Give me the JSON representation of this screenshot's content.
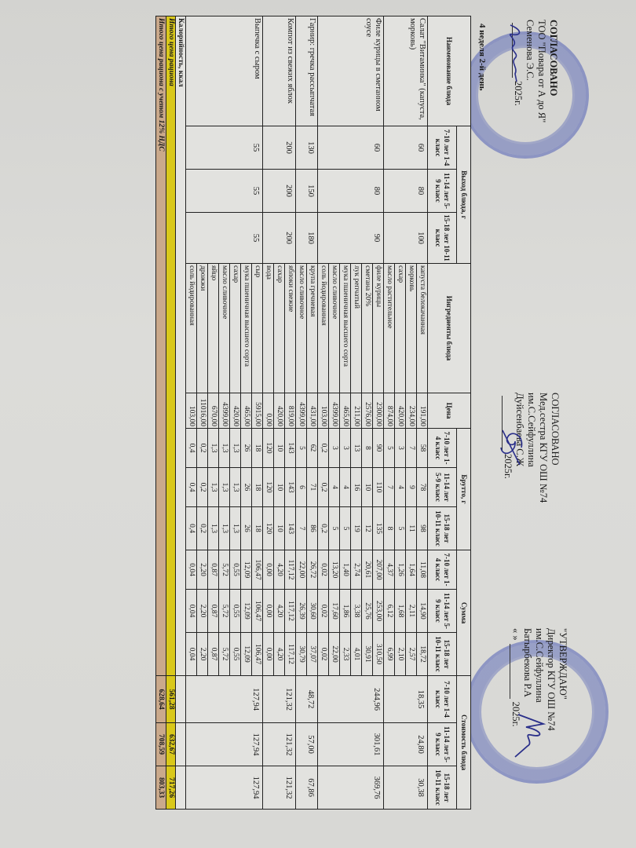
{
  "approvals": {
    "left": {
      "title": "СОГЛАСОВАНО",
      "org": "ТОО \"Повара от А до Я\"",
      "person": "Семенова Э.С.",
      "year": "2025г."
    },
    "middle": {
      "title": "СОГЛАСОВАНО",
      "position": "Мед.сестра КГУ ОШ №74",
      "school": "им.С.Сейфуллина",
      "person": "Дуйсенбаева С.Ж",
      "year": "2025г."
    },
    "right": {
      "title": "\"УТВЕРЖДАЮ\"",
      "position": "Директор КГУ ОШ №74",
      "school": "им.С.Сейфуллина",
      "person": "Батырбекова Р.А",
      "date_prefix": "«   »",
      "year": "2025г."
    }
  },
  "day_label": "4 неделя 2-й день",
  "headers": {
    "dish": "Наименование блюда",
    "yield": "Выход блюда, г",
    "ingredients": "Ингредиенты блюда",
    "price": "Цена",
    "brutto": "Брутто, г",
    "sum": "Сумма",
    "cost": "Стоимость блюда",
    "groups": [
      "7-10 лет 1-4 класс",
      "11-14 лет 5-9 класс",
      "15-18 лет 10-11 класс"
    ]
  },
  "dishes": [
    {
      "name": "Салат \"Витаминка\" (капуста, морковь)",
      "yield": [
        "60",
        "80",
        "100"
      ],
      "cost": [
        "18,35",
        "24,80",
        "30,38"
      ],
      "ingredients": [
        {
          "name": "капуста белокачанная",
          "price": "191,00",
          "brutto": [
            "58",
            "78",
            "98"
          ],
          "sum": [
            "11,08",
            "14,90",
            "18,72"
          ]
        },
        {
          "name": "морковь",
          "price": "234,00",
          "brutto": [
            "7",
            "9",
            "11"
          ],
          "sum": [
            "1,64",
            "2,11",
            "2,57"
          ]
        },
        {
          "name": "сахар",
          "price": "420,00",
          "brutto": [
            "3",
            "4",
            "5"
          ],
          "sum": [
            "1,26",
            "1,68",
            "2,10"
          ]
        },
        {
          "name": "масло растительное",
          "price": "874,00",
          "brutto": [
            "5",
            "7",
            "8"
          ],
          "sum": [
            "4,37",
            "6,12",
            "6,99"
          ]
        }
      ]
    },
    {
      "name": "Филе курицы в сметанном соусе",
      "yield": [
        "60",
        "80",
        "90"
      ],
      "cost": [
        "244,96",
        "301,61",
        "369,76"
      ],
      "ingredients": [
        {
          "name": "филе курицы",
          "price": "2300,00",
          "brutto": [
            "90",
            "110",
            "135"
          ],
          "sum": [
            "207,00",
            "253,00",
            "310,50"
          ]
        },
        {
          "name": "сметана 20%",
          "price": "2576,00",
          "brutto": [
            "8",
            "10",
            "12"
          ],
          "sum": [
            "20,61",
            "25,76",
            "30,91"
          ]
        },
        {
          "name": "лук репчатый",
          "price": "211,00",
          "brutto": [
            "13",
            "16",
            "19"
          ],
          "sum": [
            "2,74",
            "3,38",
            "4,01"
          ]
        },
        {
          "name": "мука пшеничная высшего сорта",
          "price": "465,00",
          "brutto": [
            "3",
            "4",
            "5"
          ],
          "sum": [
            "1,40",
            "1,86",
            "2,33"
          ]
        },
        {
          "name": "масло сливочное",
          "price": "4399,00",
          "brutto": [
            "3",
            "4",
            "5"
          ],
          "sum": [
            "13,20",
            "17,60",
            "22,00"
          ]
        },
        {
          "name": "соль йодированная",
          "price": "103,00",
          "brutto": [
            "0,2",
            "0,2",
            "0,2"
          ],
          "sum": [
            "0,02",
            "0,02",
            "0,02"
          ]
        }
      ]
    },
    {
      "name": "Гарнир: гречка рассыпчатая",
      "yield": [
        "130",
        "150",
        "180"
      ],
      "cost": [
        "48,72",
        "57,00",
        "67,86"
      ],
      "ingredients": [
        {
          "name": "крупа гречневая",
          "price": "431,00",
          "brutto": [
            "62",
            "71",
            "86"
          ],
          "sum": [
            "26,72",
            "30,60",
            "37,07"
          ]
        },
        {
          "name": "масло сливочное",
          "price": "4399,00",
          "brutto": [
            "5",
            "6",
            "7"
          ],
          "sum": [
            "22,00",
            "26,39",
            "30,79"
          ]
        }
      ]
    },
    {
      "name": "Компот из свежих яблок",
      "yield": [
        "200",
        "200",
        "200"
      ],
      "cost": [
        "121,32",
        "121,32",
        "121,32"
      ],
      "ingredients": [
        {
          "name": "яблоки свежие",
          "price": "819,00",
          "brutto": [
            "143",
            "143",
            "143"
          ],
          "sum": [
            "117,12",
            "117,12",
            "117,12"
          ]
        },
        {
          "name": "сахар",
          "price": "420,00",
          "brutto": [
            "10",
            "10",
            "10"
          ],
          "sum": [
            "4,20",
            "4,20",
            "4,20"
          ]
        },
        {
          "name": "вода",
          "price": "0,00",
          "brutto": [
            "120",
            "120",
            "120"
          ],
          "sum": [
            "0,00",
            "0,00",
            "0,00"
          ]
        }
      ]
    },
    {
      "name": "Выпечка с сыром",
      "yield": [
        "55",
        "55",
        "55"
      ],
      "cost": [
        "127,94",
        "127,94",
        "127,94"
      ],
      "ingredients": [
        {
          "name": "сыр",
          "price": "5915,00",
          "brutto": [
            "18",
            "18",
            "18"
          ],
          "sum": [
            "106,47",
            "106,47",
            "106,47"
          ]
        },
        {
          "name": "мука пшеничная высшего сорта",
          "price": "465,00",
          "brutto": [
            "26",
            "26",
            "26"
          ],
          "sum": [
            "12,09",
            "12,09",
            "12,09"
          ]
        },
        {
          "name": "сахар",
          "price": "420,00",
          "brutto": [
            "1,3",
            "1,3",
            "1,3"
          ],
          "sum": [
            "0,55",
            "0,55",
            "0,55"
          ]
        },
        {
          "name": "масло сливочное",
          "price": "4399,00",
          "brutto": [
            "1,3",
            "1,3",
            "1,3"
          ],
          "sum": [
            "5,72",
            "5,72",
            "5,72"
          ]
        },
        {
          "name": "яйцо",
          "price": "670,00",
          "brutto": [
            "1,3",
            "1,3",
            "1,3"
          ],
          "sum": [
            "0,87",
            "0,87",
            "0,87"
          ]
        },
        {
          "name": "дрожжи",
          "price": "11016,00",
          "brutto": [
            "0,2",
            "0,2",
            "0,2"
          ],
          "sum": [
            "2,20",
            "2,20",
            "2,20"
          ]
        },
        {
          "name": "соль йодированная",
          "price": "103,00",
          "brutto": [
            "0,4",
            "0,4",
            "0,4"
          ],
          "sum": [
            "0,04",
            "0,04",
            "0,04"
          ]
        }
      ]
    }
  ],
  "calories": {
    "label": "Калорийность, ккал"
  },
  "total": {
    "label": "Итого цена рациона",
    "values": [
      "561,28",
      "632,67",
      "717,26"
    ],
    "color": "#d9c81a"
  },
  "total_vat": {
    "label": "Итого цена рациона с учетом 12% НДС",
    "values": [
      "628,64",
      "708,59",
      "803,33"
    ],
    "color": "#caa98b"
  }
}
